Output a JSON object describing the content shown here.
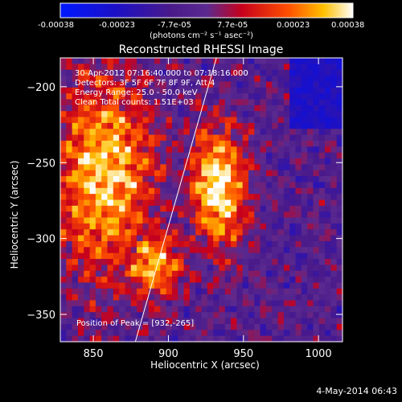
{
  "colorbar": {
    "ticks": [
      "-0.00038",
      "-0.00023",
      "-7.7e-05",
      "7.7e-05",
      "0.00023",
      "0.00038"
    ],
    "units_label": "(photons cm⁻² s⁻¹ asec⁻²)"
  },
  "title": "Reconstructed RHESSI Image",
  "annotations": {
    "time_range": "30-Apr-2012 07:16:40.000 to 07:18:16.000",
    "detectors": "Detectors: 3F 5F 6F 7F 8F 9F, Att 4",
    "energy": "Energy Range: 25.0 - 50.0 keV",
    "clean": "Clean     Total counts: 1.51E+03",
    "peak": "Position of Peak = [932,-265]"
  },
  "footer": {
    "date": "4-May-2014 06:43"
  },
  "chart_data": {
    "type": "heatmap",
    "title": "Reconstructed RHESSI Image",
    "xlabel": "Heliocentric X (arcsec)",
    "ylabel": "Heliocentric Y (arcsec)",
    "xlim": [
      828,
      1016
    ],
    "ylim": [
      -368,
      -181
    ],
    "x_ticks": [
      850,
      900,
      950,
      1000
    ],
    "y_ticks": [
      -200,
      -250,
      -300,
      -350
    ],
    "colorbar_range": [
      -0.00038,
      0.00038
    ],
    "colorscale": "blue-purple-red-yellow-white",
    "limb_line": [
      [
        878,
        -368
      ],
      [
        932,
        -181
      ]
    ],
    "peak": [
      932,
      -265
    ]
  }
}
